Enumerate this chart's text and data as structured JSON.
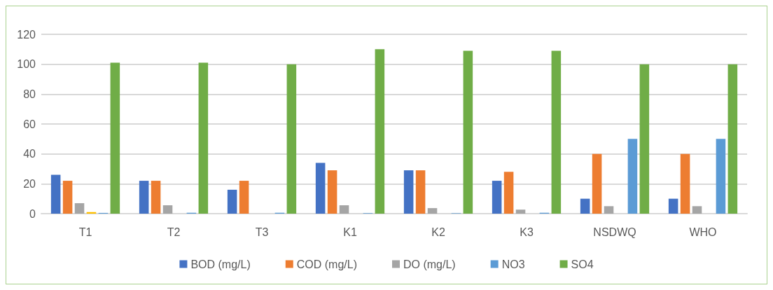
{
  "chart_data": {
    "type": "bar",
    "categories": [
      "T1",
      "T2",
      "T3",
      "K1",
      "K2",
      "K3",
      "NSDWQ",
      "WHO"
    ],
    "series": [
      {
        "name": "BOD (mg/L)",
        "color": "#4472c4",
        "values": [
          26,
          22,
          16,
          34,
          29,
          22,
          10,
          10
        ]
      },
      {
        "name": "COD (mg/L)",
        "color": "#ed7d31",
        "values": [
          22,
          22,
          22,
          29,
          29,
          28,
          40,
          40
        ]
      },
      {
        "name": "DO (mg/L)",
        "color": "#a5a5a5",
        "values": [
          7,
          5.6,
          null,
          5.6,
          3.7,
          2.7,
          5,
          5
        ]
      },
      {
        "color": "#ffc000",
        "values": [
          1,
          null,
          null,
          null,
          null,
          null,
          null,
          null
        ]
      },
      {
        "name": "NO3",
        "color": "#5b9bd5",
        "values": [
          0.5,
          0.6,
          0.6,
          0.3,
          0.3,
          0.6,
          50,
          50
        ]
      },
      {
        "name": "SO4",
        "color": "#70ad47",
        "values": [
          101,
          101,
          100,
          110,
          109,
          109,
          100,
          100
        ]
      }
    ],
    "ylim": [
      0,
      120
    ],
    "yticks": [
      0,
      20,
      40,
      60,
      80,
      100,
      120
    ],
    "grid": "y",
    "legend": "bottom"
  }
}
